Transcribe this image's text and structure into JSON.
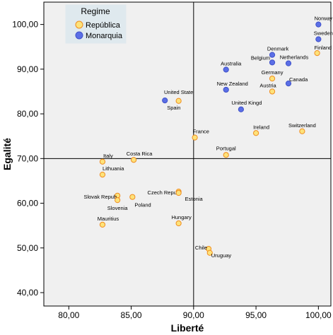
{
  "chart_data": {
    "type": "scatter",
    "xlabel": "Liberté",
    "ylabel": "Egalité",
    "xlim": [
      78.0,
      101.0
    ],
    "ylim": [
      37.0,
      105.0
    ],
    "x_ticks": [
      "80,00",
      "85,00",
      "90,00",
      "95,00",
      "100,00"
    ],
    "x_tick_values": [
      80,
      85,
      90,
      95,
      100
    ],
    "y_ticks": [
      "40,00",
      "50,00",
      "60,00",
      "70,00",
      "80,00",
      "90,00",
      "100,00"
    ],
    "y_tick_values": [
      40,
      50,
      60,
      70,
      80,
      90,
      100
    ],
    "reference_lines": {
      "x": 90.0,
      "y": 70.0
    },
    "grid": false,
    "legend": {
      "title": "Regime",
      "position": "top-left",
      "entries": [
        {
          "label": "República",
          "fill": "#fde27a",
          "stroke": "#f08c1e"
        },
        {
          "label": "Monarquia",
          "fill": "#5b6fe6",
          "stroke": "#3f51c9"
        }
      ]
    },
    "series": [
      {
        "name": "República",
        "fill": "#fde27a",
        "stroke": "#f08c1e",
        "points": [
          {
            "label": "Finland",
            "x": 99.9,
            "y": 93.6,
            "anchor": "start",
            "dx": -4,
            "dy": -5
          },
          {
            "label": "Germany",
            "x": 96.3,
            "y": 87.9,
            "anchor": "middle",
            "dx": 0,
            "dy": -6
          },
          {
            "label": "Austria",
            "x": 96.3,
            "y": 85.0,
            "anchor": "middle",
            "dx": -6,
            "dy": -6
          },
          {
            "label": "United State",
            "x": 88.8,
            "y": 82.9,
            "anchor": "middle",
            "dx": 0,
            "dy": -10
          },
          {
            "label": "France",
            "x": 90.1,
            "y": 74.7,
            "anchor": "start",
            "dx": -3,
            "dy": -6
          },
          {
            "label": "Ireland",
            "x": 95.0,
            "y": 75.7,
            "anchor": "start",
            "dx": -4,
            "dy": -6
          },
          {
            "label": "Switzerland",
            "x": 98.7,
            "y": 76.1,
            "anchor": "middle",
            "dx": 0,
            "dy": -6
          },
          {
            "label": "Portugal",
            "x": 92.6,
            "y": 70.8,
            "anchor": "middle",
            "dx": 0,
            "dy": -7
          },
          {
            "label": "Italy",
            "x": 82.7,
            "y": 69.3,
            "anchor": "start",
            "dx": 1,
            "dy": -6
          },
          {
            "label": "Costa Rica",
            "x": 85.2,
            "y": 69.7,
            "anchor": "middle",
            "dx": 8,
            "dy": -6
          },
          {
            "label": "Lithuania",
            "x": 82.7,
            "y": 66.4,
            "anchor": "start",
            "dx": 0,
            "dy": -6
          },
          {
            "label": "Slovak Repub",
            "x": 83.9,
            "y": 61.7,
            "anchor": "end",
            "dx": -1,
            "dy": 4
          },
          {
            "label": "Slovenia",
            "x": 83.9,
            "y": 60.7,
            "anchor": "middle",
            "dx": 0,
            "dy": 14
          },
          {
            "label": "Poland",
            "x": 85.1,
            "y": 61.4,
            "anchor": "start",
            "dx": 3,
            "dy": 14
          },
          {
            "label": "Czech Republ",
            "x": 88.8,
            "y": 62.6,
            "anchor": "end",
            "dx": 3,
            "dy": 4
          },
          {
            "label": "Estonia",
            "x": 88.8,
            "y": 62.3,
            "anchor": "start",
            "dx": 9,
            "dy": 11
          },
          {
            "label": "Mauritius",
            "x": 82.7,
            "y": 55.2,
            "anchor": "middle",
            "dx": 8,
            "dy": -6
          },
          {
            "label": "Hungary",
            "x": 88.8,
            "y": 55.5,
            "anchor": "middle",
            "dx": 4,
            "dy": -6
          },
          {
            "label": "Chile",
            "x": 91.2,
            "y": 49.8,
            "anchor": "end",
            "dx": -2,
            "dy": 1
          },
          {
            "label": "Uruguay",
            "x": 91.3,
            "y": 48.9,
            "anchor": "start",
            "dx": 2,
            "dy": 6
          }
        ]
      },
      {
        "name": "Monarquia",
        "fill": "#5b6fe6",
        "stroke": "#3f51c9",
        "points": [
          {
            "label": "Norway",
            "x": 100.0,
            "y": 100.0,
            "anchor": "middle",
            "dx": 7,
            "dy": -6
          },
          {
            "label": "Sweden",
            "x": 100.0,
            "y": 96.7,
            "anchor": "middle",
            "dx": 7,
            "dy": -6
          },
          {
            "label": "Denmark",
            "x": 96.3,
            "y": 93.2,
            "anchor": "middle",
            "dx": 8,
            "dy": -6
          },
          {
            "label": "Belgium",
            "x": 96.3,
            "y": 91.5,
            "anchor": "end",
            "dx": -3,
            "dy": -4
          },
          {
            "label": "Netherlands",
            "x": 97.6,
            "y": 91.3,
            "anchor": "middle",
            "dx": 8,
            "dy": -6
          },
          {
            "label": "Australia",
            "x": 92.6,
            "y": 89.9,
            "anchor": "middle",
            "dx": 7,
            "dy": -6
          },
          {
            "label": "Canada",
            "x": 97.6,
            "y": 86.8,
            "anchor": "start",
            "dx": 1,
            "dy": -3
          },
          {
            "label": "New Zealand",
            "x": 92.6,
            "y": 85.4,
            "anchor": "middle",
            "dx": 9,
            "dy": -6
          },
          {
            "label": "Spain",
            "x": 87.7,
            "y": 83.0,
            "anchor": "start",
            "dx": 3,
            "dy": 13
          },
          {
            "label": "United Kingd",
            "x": 93.8,
            "y": 81.0,
            "anchor": "middle",
            "dx": 8,
            "dy": -7
          }
        ]
      }
    ]
  }
}
